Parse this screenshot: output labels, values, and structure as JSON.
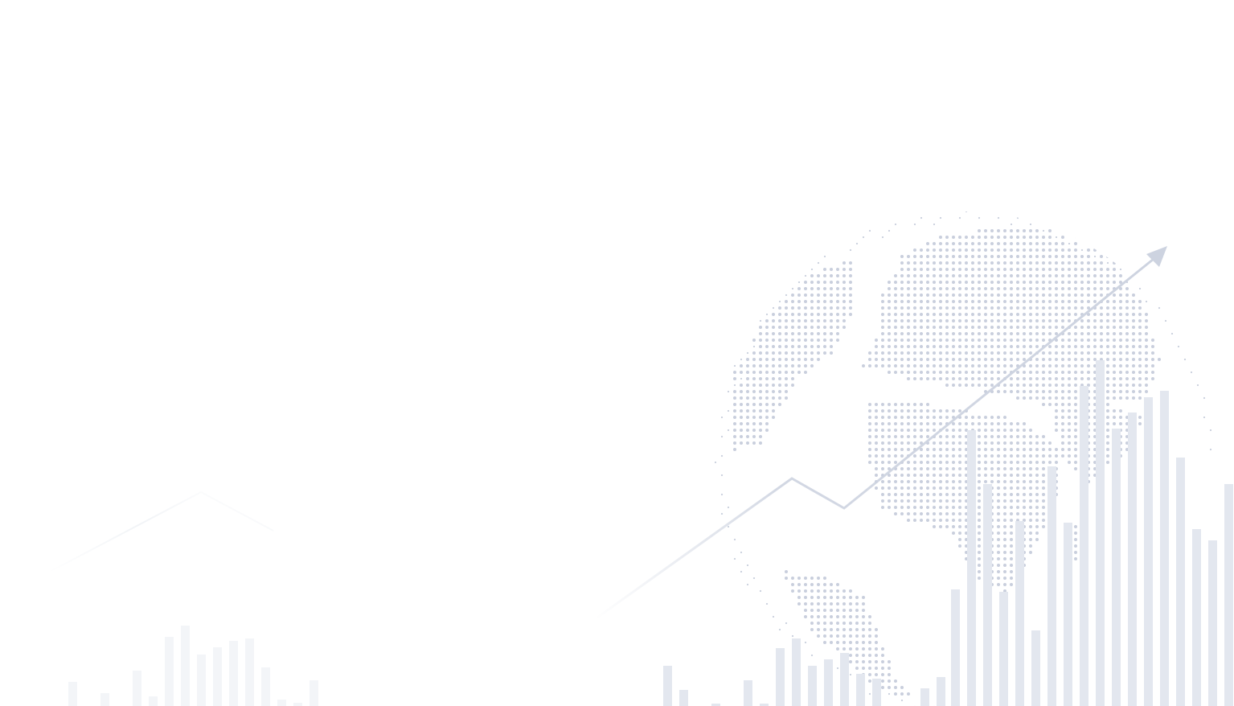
{
  "background": {
    "description_free": true,
    "colors": {
      "page": "#ffffff",
      "globe_dots": "#c9cfdd",
      "bars": "#e3e7ef",
      "bars_faint": "#f3f5f8",
      "trend_line": "#cdd3e0"
    },
    "elements": {
      "globe": "dotted-world-globe",
      "trend": "trend-arrow-up",
      "bars": "bar-histogram"
    }
  }
}
